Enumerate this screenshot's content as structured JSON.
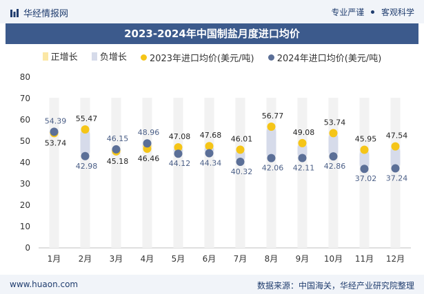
{
  "header": {
    "brand": "华经情报网",
    "tagline_a": "专业严谨",
    "tagline_b": "客观科学"
  },
  "footer": {
    "site": "www.huaon.com",
    "source": "数据来源：中国海关，华经产业研究院整理"
  },
  "chart_data": {
    "type": "line",
    "title": "2023-2024年中国制盐月度进口均价",
    "categories": [
      "1月",
      "2月",
      "3月",
      "4月",
      "5月",
      "6月",
      "7月",
      "8月",
      "9月",
      "10月",
      "11月",
      "12月"
    ],
    "series": [
      {
        "name": "2023年进口均价(美元/吨)",
        "values": [
          53.74,
          55.47,
          45.18,
          46.46,
          47.08,
          47.68,
          46.01,
          56.77,
          49.08,
          53.74,
          45.95,
          47.54
        ]
      },
      {
        "name": "2024年进口均价(美元/吨)",
        "values": [
          54.39,
          42.98,
          46.15,
          48.96,
          44.12,
          44.34,
          40.32,
          42.06,
          42.11,
          42.86,
          37.02,
          37.24
        ]
      }
    ],
    "legend": [
      "正增长",
      "负增长",
      "2023年进口均价(美元/吨)",
      "2024年进口均价(美元/吨)"
    ],
    "ylim": [
      0,
      80
    ],
    "yticks": [
      0,
      10,
      20,
      30,
      40,
      50,
      60,
      70,
      80
    ],
    "legend_position": "top",
    "colors": {
      "s2023": "#f5c518",
      "s2024": "#5b6f97",
      "pos": "#fbe7a5",
      "neg": "#d6dbea"
    }
  }
}
